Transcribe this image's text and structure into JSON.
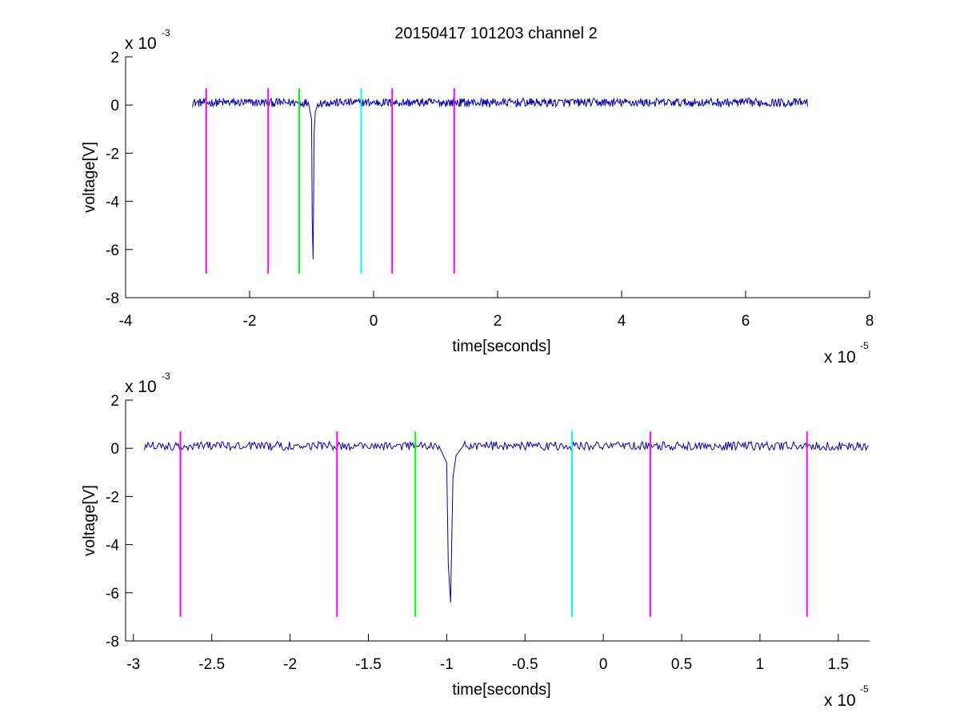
{
  "figure_title": "20150417 101203 channel 2",
  "colors": {
    "signal": "#0000aa",
    "magenta": "#ff00ff",
    "green": "#00ff00",
    "cyan": "#00ffff",
    "axis": "#000000",
    "background": "#ffffff"
  },
  "chart_data": [
    {
      "type": "line",
      "title": "20150417 101203 channel 2",
      "xlabel": "time[seconds]",
      "ylabel": "voltage[V]",
      "x_exponent_label": "x 10",
      "x_exponent": "-5",
      "y_exponent_label": "x 10",
      "y_exponent": "-3",
      "xlim": [
        -4,
        8
      ],
      "ylim": [
        -8,
        2
      ],
      "xticks": [
        "-4",
        "-2",
        "0",
        "2",
        "4",
        "6",
        "8"
      ],
      "yticks": [
        "2",
        "0",
        "-2",
        "-4",
        "-6",
        "-8"
      ],
      "xtick_values": [
        -4,
        -2,
        0,
        2,
        4,
        6,
        8
      ],
      "ytick_values": [
        2,
        0,
        -2,
        -4,
        -6,
        -8
      ],
      "grid": false,
      "signal": {
        "x_start": -2.93,
        "x_end": 7.0,
        "baseline": 0.1,
        "noise_amplitude": 0.18,
        "spike": [
          [
            -1.05,
            0.1
          ],
          [
            -1.0,
            -0.6
          ],
          [
            -0.99,
            -4.8
          ],
          [
            -0.975,
            -6.4
          ],
          [
            -0.96,
            -1.2
          ],
          [
            -0.94,
            -0.3
          ],
          [
            -0.9,
            0.05
          ]
        ]
      },
      "markers": [
        {
          "x": -2.7,
          "color": "magenta",
          "y_top": 0.7,
          "y_bottom": -7.0
        },
        {
          "x": -1.7,
          "color": "magenta",
          "y_top": 0.7,
          "y_bottom": -7.0
        },
        {
          "x": -1.2,
          "color": "green",
          "y_top": 0.7,
          "y_bottom": -7.0
        },
        {
          "x": -0.2,
          "color": "cyan",
          "y_top": 0.7,
          "y_bottom": -7.0
        },
        {
          "x": 0.3,
          "color": "magenta",
          "y_top": 0.7,
          "y_bottom": -7.0
        },
        {
          "x": 1.3,
          "color": "magenta",
          "y_top": 0.7,
          "y_bottom": -7.0
        }
      ]
    },
    {
      "type": "line",
      "title": "",
      "xlabel": "time[seconds]",
      "ylabel": "voltage[V]",
      "x_exponent_label": "x 10",
      "x_exponent": "-5",
      "y_exponent_label": "x 10",
      "y_exponent": "-3",
      "xlim": [
        -3.05,
        1.7
      ],
      "ylim": [
        -8,
        2
      ],
      "xticks": [
        "-3",
        "-2.5",
        "-2",
        "-1.5",
        "-1",
        "-0.5",
        "0",
        "0.5",
        "1",
        "1.5"
      ],
      "yticks": [
        "2",
        "0",
        "-2",
        "-4",
        "-6",
        "-8"
      ],
      "xtick_values": [
        -3,
        -2.5,
        -2,
        -1.5,
        -1,
        -0.5,
        0,
        0.5,
        1,
        1.5
      ],
      "ytick_values": [
        2,
        0,
        -2,
        -4,
        -6,
        -8
      ],
      "grid": false,
      "signal": {
        "x_start": -2.93,
        "x_end": 1.7,
        "baseline": 0.1,
        "noise_amplitude": 0.18,
        "spike": [
          [
            -1.05,
            0.1
          ],
          [
            -1.0,
            -0.6
          ],
          [
            -0.99,
            -4.8
          ],
          [
            -0.975,
            -6.4
          ],
          [
            -0.96,
            -1.2
          ],
          [
            -0.94,
            -0.3
          ],
          [
            -0.9,
            0.05
          ]
        ]
      },
      "markers": [
        {
          "x": -2.7,
          "color": "magenta",
          "y_top": 0.7,
          "y_bottom": -7.0
        },
        {
          "x": -1.7,
          "color": "magenta",
          "y_top": 0.7,
          "y_bottom": -7.0
        },
        {
          "x": -1.2,
          "color": "green",
          "y_top": 0.7,
          "y_bottom": -7.0
        },
        {
          "x": -0.2,
          "color": "cyan",
          "y_top": 0.7,
          "y_bottom": -7.0
        },
        {
          "x": 0.3,
          "color": "magenta",
          "y_top": 0.7,
          "y_bottom": -7.0
        },
        {
          "x": 1.3,
          "color": "magenta",
          "y_top": 0.7,
          "y_bottom": -7.0
        }
      ]
    }
  ]
}
